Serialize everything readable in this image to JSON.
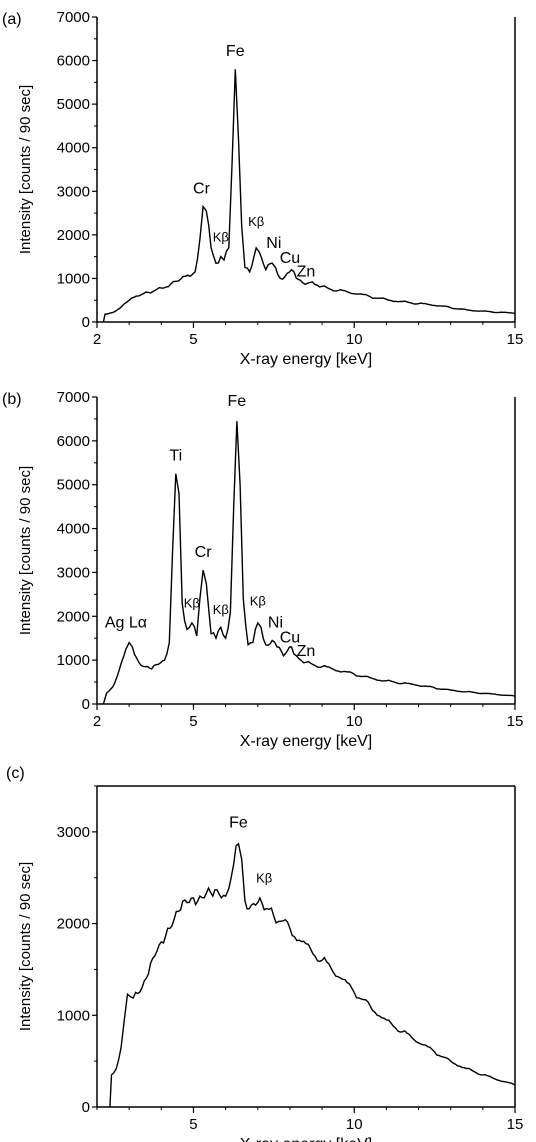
{
  "chart_data": [
    {
      "panel_label": "(a)",
      "type": "line",
      "xlabel": "X-ray energy [keV]",
      "ylabel": "Intensity [counts / 90 sec]",
      "xlim": [
        2,
        15
      ],
      "ylim": [
        0,
        7000
      ],
      "xticks": [
        2,
        5,
        10,
        15
      ],
      "yticks": [
        0,
        1000,
        2000,
        3000,
        4000,
        5000,
        6000,
        7000
      ],
      "series": [
        {
          "points": [
            [
              2.2,
              0
            ],
            [
              2.25,
              180
            ],
            [
              2.5,
              220
            ],
            [
              2.8,
              380
            ],
            [
              3.0,
              500
            ],
            [
              3.3,
              600
            ],
            [
              3.6,
              680
            ],
            [
              4.0,
              780
            ],
            [
              4.3,
              880
            ],
            [
              4.6,
              980
            ],
            [
              4.9,
              1050
            ],
            [
              5.05,
              1150
            ],
            [
              5.2,
              1900
            ],
            [
              5.3,
              2650
            ],
            [
              5.4,
              2550
            ],
            [
              5.55,
              1700
            ],
            [
              5.7,
              1350
            ],
            [
              5.85,
              1500
            ],
            [
              5.95,
              1420
            ],
            [
              6.1,
              1700
            ],
            [
              6.2,
              3600
            ],
            [
              6.3,
              5800
            ],
            [
              6.4,
              4200
            ],
            [
              6.5,
              2200
            ],
            [
              6.6,
              1250
            ],
            [
              6.75,
              1150
            ],
            [
              6.95,
              1700
            ],
            [
              7.05,
              1600
            ],
            [
              7.25,
              1200
            ],
            [
              7.45,
              1350
            ],
            [
              7.55,
              1250
            ],
            [
              7.7,
              1000
            ],
            [
              7.85,
              1050
            ],
            [
              8.05,
              1200
            ],
            [
              8.2,
              1000
            ],
            [
              8.4,
              900
            ],
            [
              8.7,
              920
            ],
            [
              9.0,
              820
            ],
            [
              9.5,
              720
            ],
            [
              10.0,
              650
            ],
            [
              10.5,
              580
            ],
            [
              11.0,
              520
            ],
            [
              11.5,
              470
            ],
            [
              12.0,
              420
            ],
            [
              12.5,
              380
            ],
            [
              13.0,
              330
            ],
            [
              13.5,
              280
            ],
            [
              14.0,
              250
            ],
            [
              14.5,
              220
            ],
            [
              15.0,
              200
            ]
          ]
        }
      ],
      "annotations": [
        {
          "text": "Fe",
          "x": 6.3,
          "y": 6100
        },
        {
          "text": "Cr",
          "x": 5.25,
          "y": 2950
        },
        {
          "text": "Kβ",
          "x": 5.85,
          "y": 1850
        },
        {
          "text": "Kβ",
          "x": 6.95,
          "y": 2200
        },
        {
          "text": "Ni",
          "x": 7.5,
          "y": 1700
        },
        {
          "text": "Cu",
          "x": 8.0,
          "y": 1350
        },
        {
          "text": "Zn",
          "x": 8.5,
          "y": 1050
        }
      ]
    },
    {
      "panel_label": "(b)",
      "type": "line",
      "xlabel": "X-ray energy [keV]",
      "ylabel": "Intensity [counts / 90 sec]",
      "xlim": [
        2,
        15
      ],
      "ylim": [
        0,
        7000
      ],
      "xticks": [
        2,
        5,
        10,
        15
      ],
      "yticks": [
        0,
        1000,
        2000,
        3000,
        4000,
        5000,
        6000,
        7000
      ],
      "series": [
        {
          "points": [
            [
              2.2,
              0
            ],
            [
              2.3,
              250
            ],
            [
              2.5,
              400
            ],
            [
              2.7,
              800
            ],
            [
              2.9,
              1250
            ],
            [
              3.0,
              1400
            ],
            [
              3.1,
              1300
            ],
            [
              3.3,
              950
            ],
            [
              3.5,
              850
            ],
            [
              3.7,
              800
            ],
            [
              3.9,
              900
            ],
            [
              4.1,
              1000
            ],
            [
              4.25,
              1400
            ],
            [
              4.35,
              3500
            ],
            [
              4.45,
              5250
            ],
            [
              4.55,
              4800
            ],
            [
              4.65,
              2300
            ],
            [
              4.8,
              1700
            ],
            [
              4.95,
              1850
            ],
            [
              5.1,
              1550
            ],
            [
              5.2,
              2400
            ],
            [
              5.3,
              3050
            ],
            [
              5.4,
              2750
            ],
            [
              5.55,
              1600
            ],
            [
              5.7,
              1500
            ],
            [
              5.85,
              1750
            ],
            [
              6.0,
              1500
            ],
            [
              6.15,
              2100
            ],
            [
              6.25,
              4500
            ],
            [
              6.35,
              6450
            ],
            [
              6.45,
              5000
            ],
            [
              6.55,
              2400
            ],
            [
              6.7,
              1350
            ],
            [
              6.85,
              1400
            ],
            [
              7.0,
              1850
            ],
            [
              7.1,
              1750
            ],
            [
              7.25,
              1350
            ],
            [
              7.45,
              1450
            ],
            [
              7.6,
              1300
            ],
            [
              7.8,
              1100
            ],
            [
              8.05,
              1300
            ],
            [
              8.2,
              1100
            ],
            [
              8.5,
              950
            ],
            [
              9.0,
              850
            ],
            [
              9.5,
              750
            ],
            [
              10.0,
              680
            ],
            [
              10.5,
              600
            ],
            [
              11.0,
              530
            ],
            [
              11.5,
              470
            ],
            [
              12.0,
              420
            ],
            [
              12.5,
              370
            ],
            [
              13.0,
              320
            ],
            [
              13.5,
              280
            ],
            [
              14.0,
              240
            ],
            [
              14.5,
              210
            ],
            [
              15.0,
              180
            ]
          ]
        }
      ],
      "annotations": [
        {
          "text": "Fe",
          "x": 6.35,
          "y": 6800
        },
        {
          "text": "Ti",
          "x": 4.45,
          "y": 5550
        },
        {
          "text": "Cr",
          "x": 5.3,
          "y": 3350
        },
        {
          "text": "Kβ",
          "x": 4.95,
          "y": 2200
        },
        {
          "text": "Kβ",
          "x": 5.85,
          "y": 2050
        },
        {
          "text": "Kβ",
          "x": 7.0,
          "y": 2250
        },
        {
          "text": "Ni",
          "x": 7.55,
          "y": 1750
        },
        {
          "text": "Cu",
          "x": 8.0,
          "y": 1400
        },
        {
          "text": "Zn",
          "x": 8.5,
          "y": 1100
        },
        {
          "text": "Ag Lα",
          "x": 2.9,
          "y": 1750
        }
      ]
    },
    {
      "panel_label": "(c)",
      "type": "line",
      "xlabel": "X-ray energy [keV]",
      "ylabel": "Intensity [counts / 90 sec]",
      "xlim": [
        2,
        15
      ],
      "ylim": [
        0,
        3500
      ],
      "xticks": [
        5,
        10,
        15
      ],
      "yticks": [
        0,
        1000,
        2000,
        3000
      ],
      "series": [
        {
          "points": [
            [
              2.4,
              0
            ],
            [
              2.45,
              350
            ],
            [
              2.6,
              420
            ],
            [
              2.75,
              650
            ],
            [
              2.85,
              950
            ],
            [
              2.95,
              1230
            ],
            [
              3.05,
              1200
            ],
            [
              3.2,
              1250
            ],
            [
              3.4,
              1300
            ],
            [
              3.6,
              1450
            ],
            [
              3.8,
              1650
            ],
            [
              4.0,
              1800
            ],
            [
              4.2,
              1950
            ],
            [
              4.4,
              2050
            ],
            [
              4.6,
              2150
            ],
            [
              4.8,
              2230
            ],
            [
              5.0,
              2280
            ],
            [
              5.2,
              2300
            ],
            [
              5.4,
              2330
            ],
            [
              5.6,
              2300
            ],
            [
              5.8,
              2320
            ],
            [
              6.0,
              2300
            ],
            [
              6.1,
              2380
            ],
            [
              6.25,
              2650
            ],
            [
              6.4,
              2870
            ],
            [
              6.5,
              2700
            ],
            [
              6.6,
              2250
            ],
            [
              6.8,
              2200
            ],
            [
              7.0,
              2230
            ],
            [
              7.2,
              2150
            ],
            [
              7.5,
              2080
            ],
            [
              8.0,
              1950
            ],
            [
              8.5,
              1780
            ],
            [
              9.0,
              1600
            ],
            [
              9.5,
              1420
            ],
            [
              10.0,
              1250
            ],
            [
              10.5,
              1100
            ],
            [
              11.0,
              950
            ],
            [
              11.5,
              820
            ],
            [
              12.0,
              700
            ],
            [
              12.5,
              600
            ],
            [
              13.0,
              500
            ],
            [
              13.5,
              420
            ],
            [
              14.0,
              350
            ],
            [
              14.5,
              290
            ],
            [
              15.0,
              240
            ]
          ]
        }
      ],
      "annotations": [
        {
          "text": "Fe",
          "x": 6.4,
          "y": 3050
        },
        {
          "text": "Kβ",
          "x": 7.2,
          "y": 2450
        }
      ]
    }
  ],
  "colors": {
    "line": "#000000",
    "axis": "#000000",
    "background": "#ffffff"
  }
}
